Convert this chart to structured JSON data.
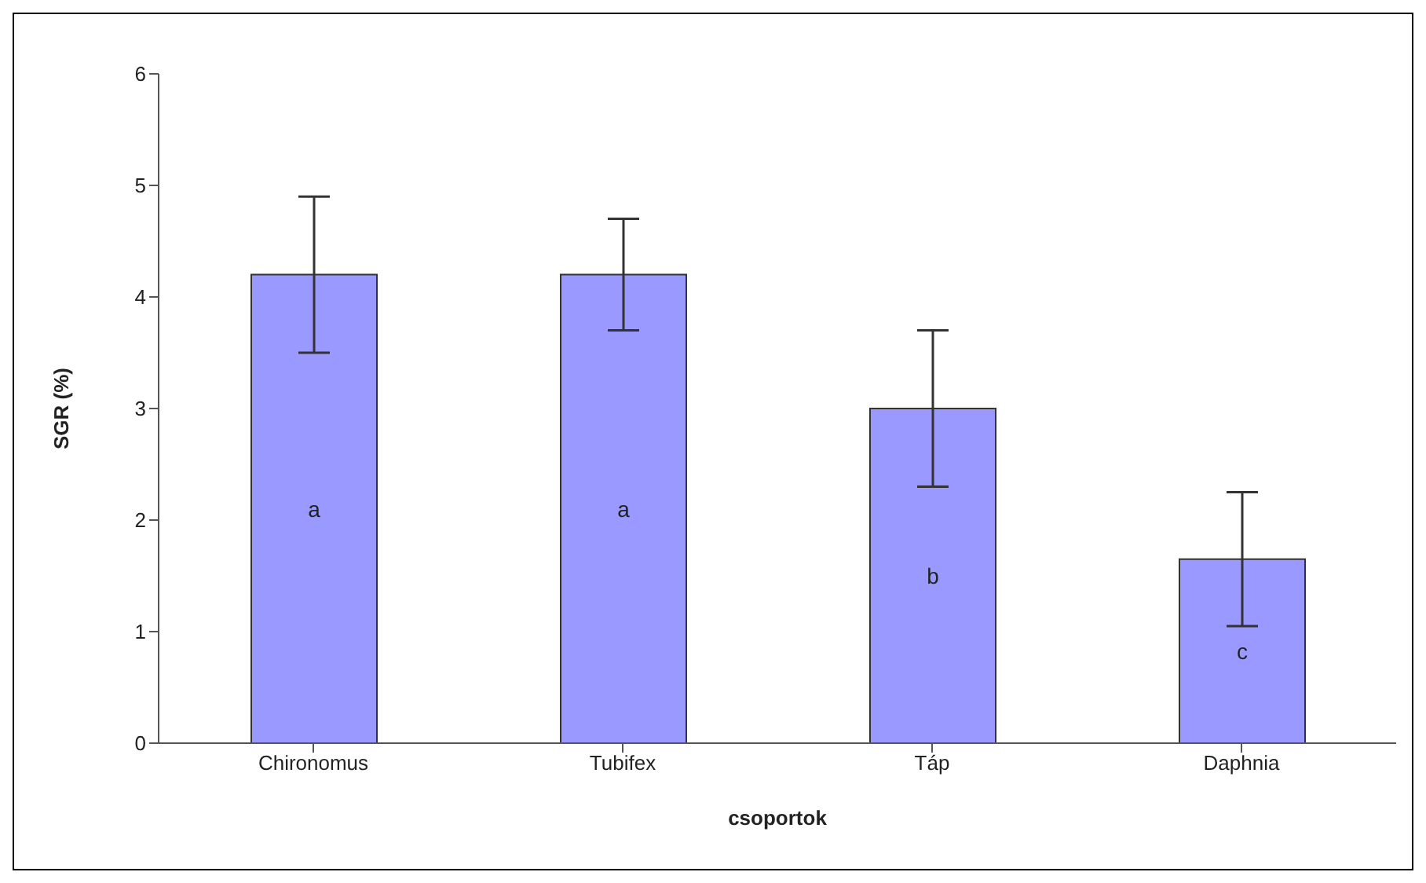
{
  "chart_data": {
    "type": "bar",
    "xlabel": "csoportok",
    "ylabel": "SGR (%)",
    "categories": [
      "Chironomus",
      "Tubifex",
      "Táp",
      "Daphnia"
    ],
    "values": [
      4.2,
      4.2,
      3.0,
      1.65
    ],
    "errors": [
      0.7,
      0.5,
      0.7,
      0.6
    ],
    "color": "#9999ff",
    "ylim": [
      0,
      6
    ],
    "yticks": [
      0,
      1,
      2,
      3,
      4,
      5,
      6
    ],
    "grid": false,
    "legend": false,
    "annotations": [
      "a",
      "a",
      "b",
      "c"
    ]
  }
}
